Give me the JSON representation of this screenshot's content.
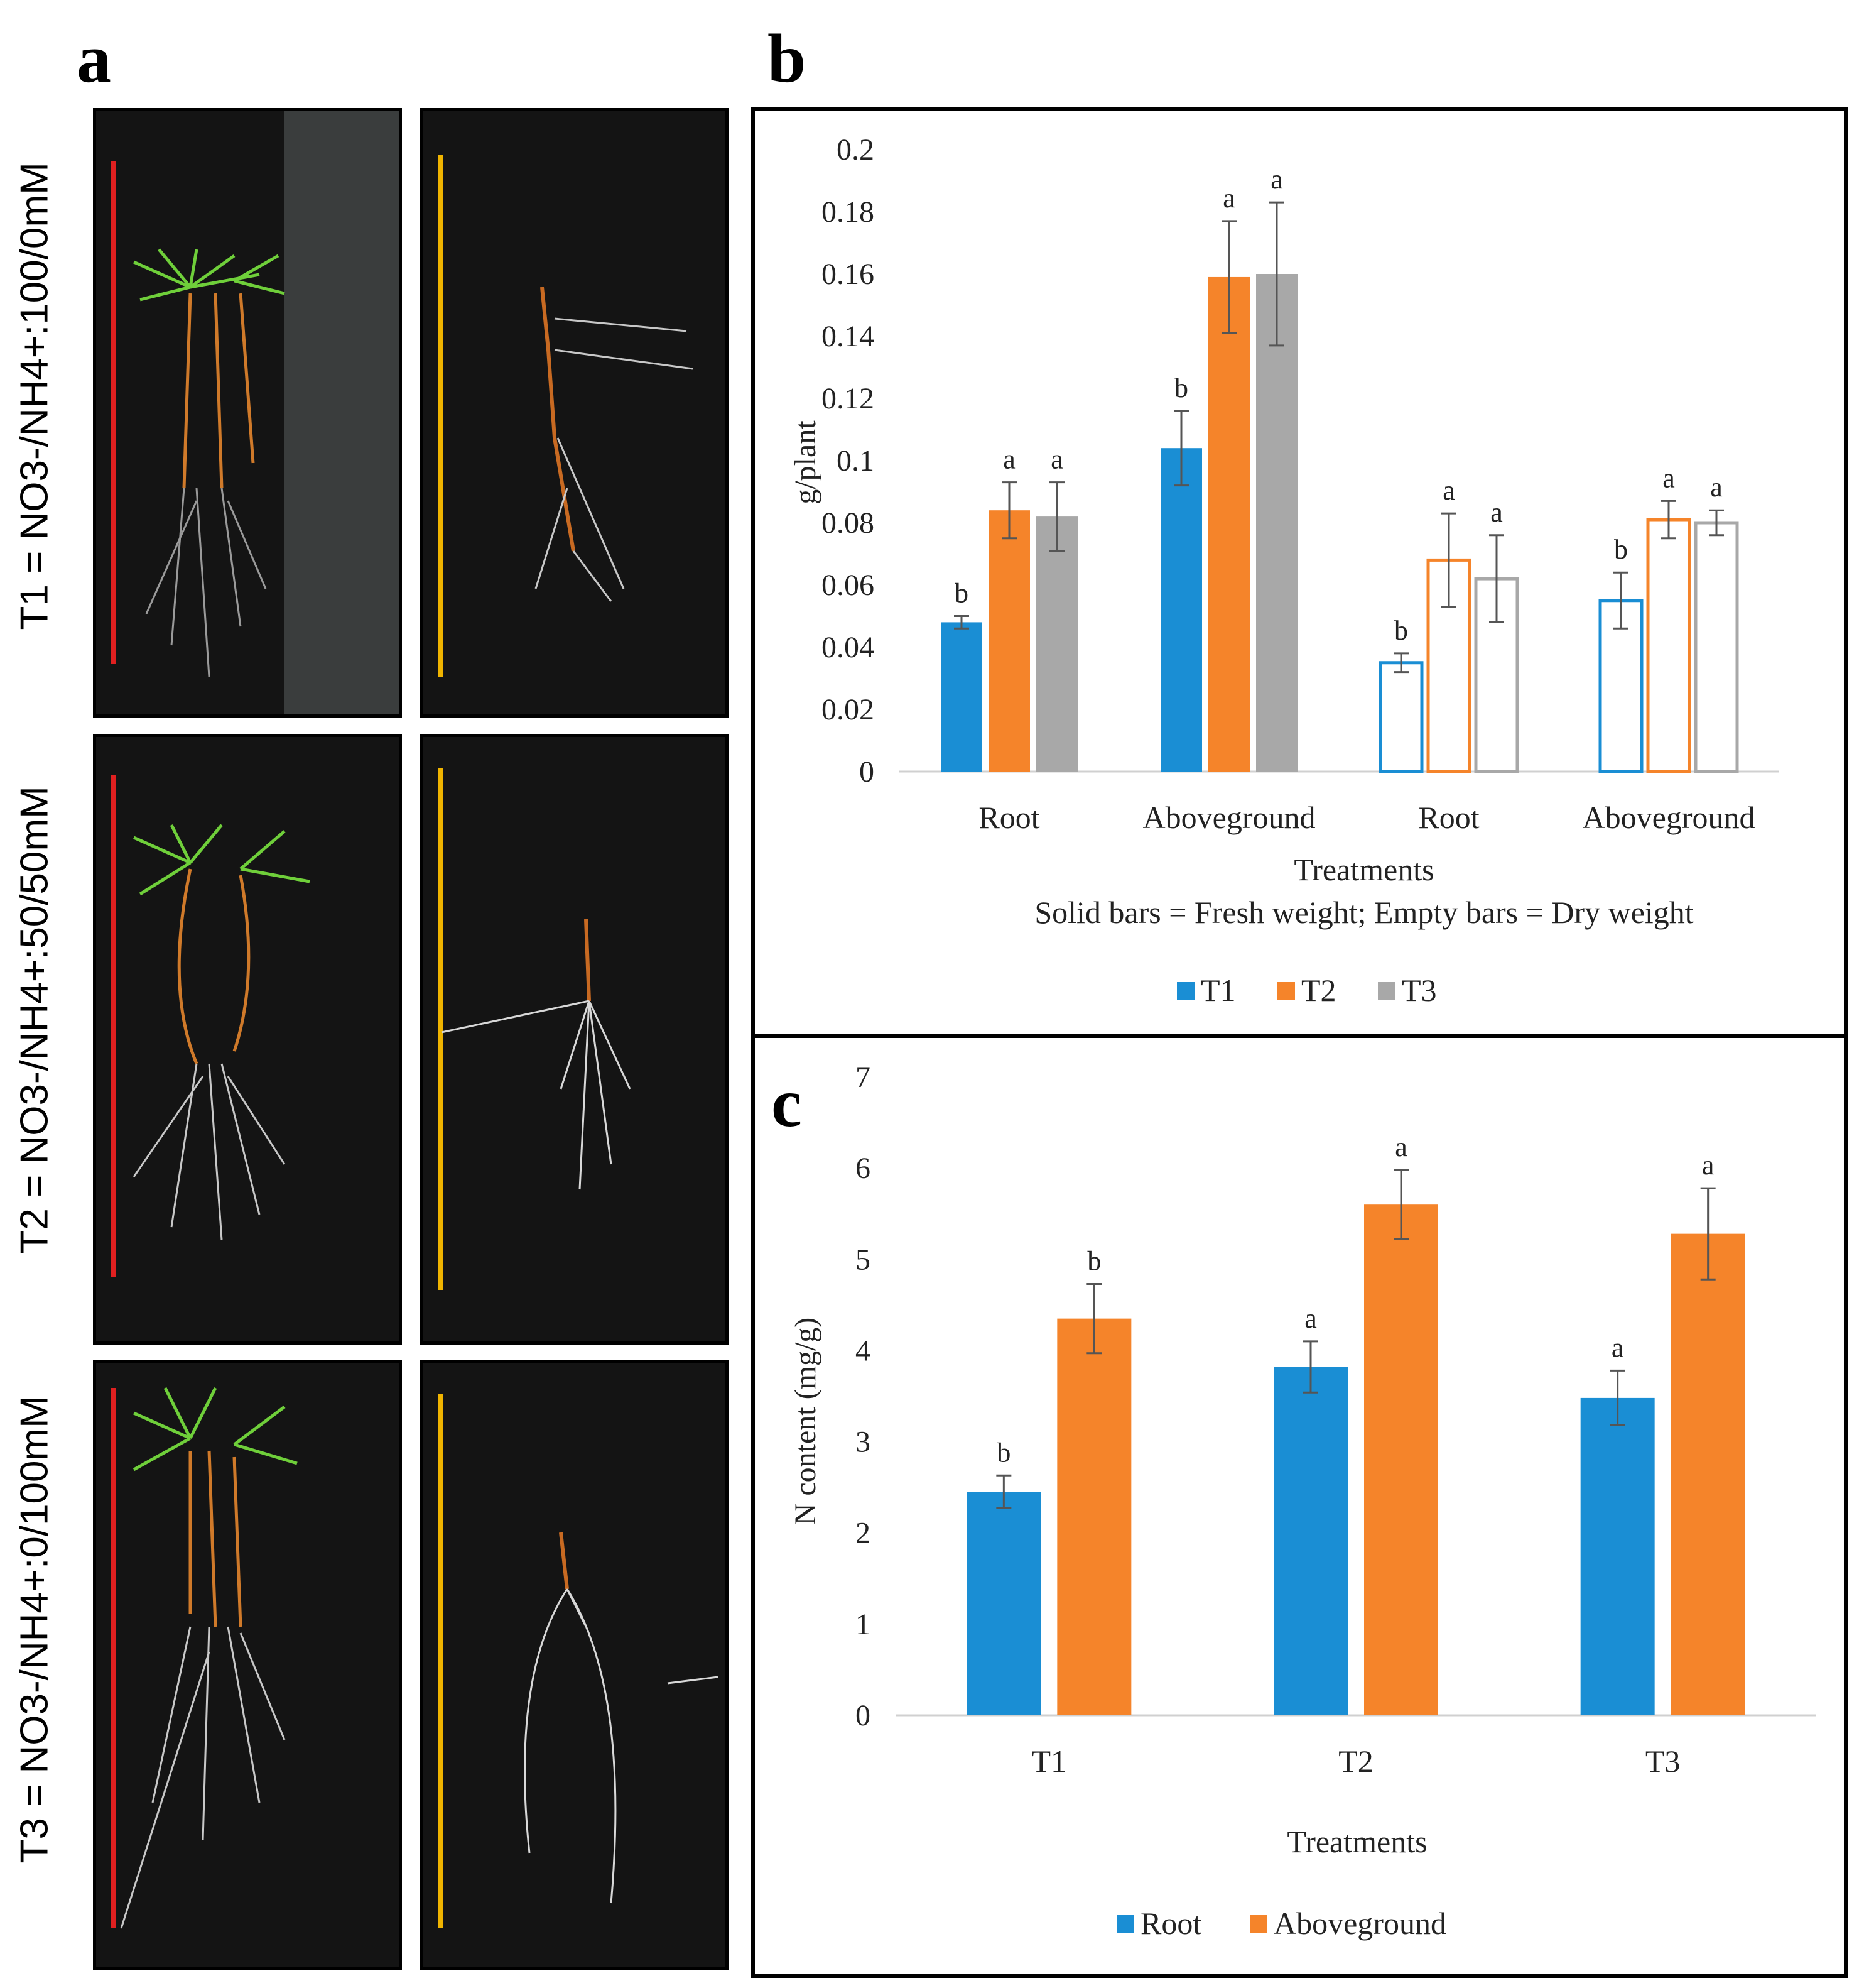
{
  "panels": {
    "a": {
      "letter": "a"
    },
    "b": {
      "letter": "b"
    },
    "c": {
      "letter": "c"
    }
  },
  "photos": {
    "rows": [
      {
        "label": "T1 = NO3-/NH4+:100/0mM"
      },
      {
        "label": "T2 = NO3-/NH4+:50/50mM"
      },
      {
        "label": "T3 = NO3-/NH4+:0/100mM"
      }
    ],
    "colors": {
      "whole_plant_scale": "#e02020",
      "root_scale": "#f0b400",
      "foliage": "#6fcf3a",
      "stem": "#d07a2a",
      "root": "#c8c8c8"
    }
  },
  "chart_data": [
    {
      "id": "b",
      "type": "bar",
      "ylabel": "g/plant",
      "xlabel": "Treatments",
      "note": "Solid bars = Fresh weight; Empty bars = Dry weight",
      "ylim": [
        0,
        0.2
      ],
      "yticks": [
        "0",
        "0.02",
        "0.04",
        "0.06",
        "0.08",
        "0.1",
        "0.12",
        "0.14",
        "0.16",
        "0.18",
        "0.2"
      ],
      "categories": [
        "Root",
        "Aboveground",
        "Root",
        "Aboveground"
      ],
      "fill_styles": [
        "solid",
        "solid",
        "empty",
        "empty"
      ],
      "legend": [
        "T1",
        "T2",
        "T3"
      ],
      "series": [
        {
          "name": "T1",
          "color": "#1a8ed4",
          "values": [
            0.048,
            0.104,
            0.035,
            0.055
          ],
          "errors": [
            0.002,
            0.012,
            0.003,
            0.009
          ],
          "letters": [
            "b",
            "b",
            "b",
            "b"
          ]
        },
        {
          "name": "T2",
          "color": "#f5842a",
          "values": [
            0.084,
            0.159,
            0.068,
            0.081
          ],
          "errors": [
            0.009,
            0.018,
            0.015,
            0.006
          ],
          "letters": [
            "a",
            "a",
            "a",
            "a"
          ]
        },
        {
          "name": "T3",
          "color": "#a8a8a8",
          "values": [
            0.082,
            0.16,
            0.062,
            0.08
          ],
          "errors": [
            0.011,
            0.023,
            0.014,
            0.004
          ],
          "letters": [
            "a",
            "a",
            "a",
            "a"
          ]
        }
      ]
    },
    {
      "id": "c",
      "type": "bar",
      "ylabel": "N content (mg/g)",
      "xlabel": "Treatments",
      "ylim": [
        0,
        7
      ],
      "yticks": [
        "0",
        "1",
        "2",
        "3",
        "4",
        "5",
        "6",
        "7"
      ],
      "categories": [
        "T1",
        "T2",
        "T3"
      ],
      "legend": [
        "Root",
        "Aboveground"
      ],
      "series": [
        {
          "name": "Root",
          "color": "#1a8ed4",
          "values": [
            2.45,
            3.82,
            3.48
          ],
          "errors": [
            0.18,
            0.28,
            0.3
          ],
          "letters": [
            "b",
            "a",
            "a"
          ]
        },
        {
          "name": "Aboveground",
          "color": "#f5842a",
          "values": [
            4.35,
            5.6,
            5.28
          ],
          "errors": [
            0.38,
            0.38,
            0.5
          ],
          "letters": [
            "b",
            "a",
            "a"
          ]
        }
      ]
    }
  ]
}
